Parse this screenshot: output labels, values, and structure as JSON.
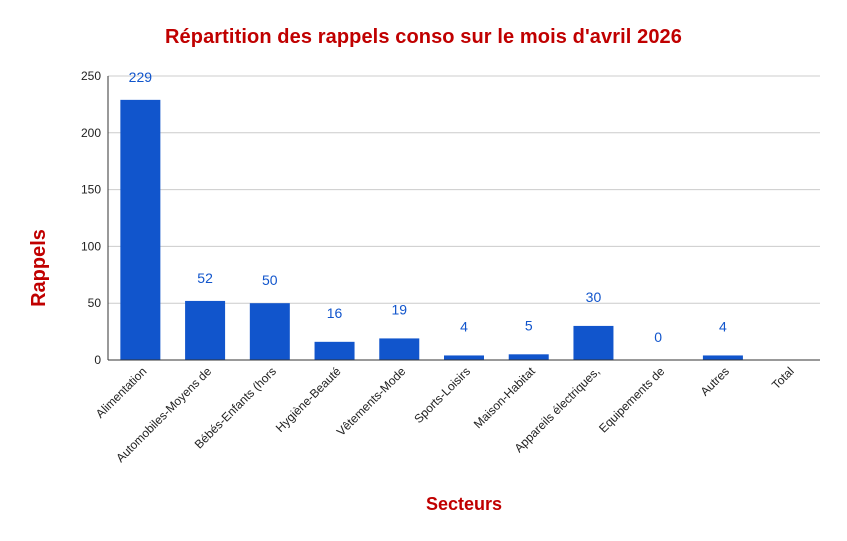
{
  "chart_data": {
    "type": "bar",
    "title": "Répartition des rappels conso sur le mois d'avril 2026",
    "xlabel": "Secteurs",
    "ylabel": "Rappels",
    "categories": [
      "Alimentation",
      "Automobiles-Moyens de",
      "Bébés-Enfants (hors",
      "Hygiène-Beauté",
      "Vêtements-Mode",
      "Sports-Loisirs",
      "Maison-Habitat",
      "Appareils électriques,",
      "Equipements de",
      "Autres",
      "Total"
    ],
    "values": [
      229,
      52,
      50,
      16,
      19,
      4,
      5,
      30,
      0,
      4,
      null
    ],
    "data_labels": [
      "229",
      "52",
      "50",
      "16",
      "19",
      "4",
      "5",
      "30",
      "0",
      "4",
      ""
    ],
    "ylim": [
      0,
      250
    ],
    "yticks": [
      0,
      50,
      100,
      150,
      200,
      250
    ],
    "grid": true,
    "legend": "none",
    "bar_color": "#1155cc",
    "title_color": "#c00000",
    "label_color": "#1155cc"
  }
}
